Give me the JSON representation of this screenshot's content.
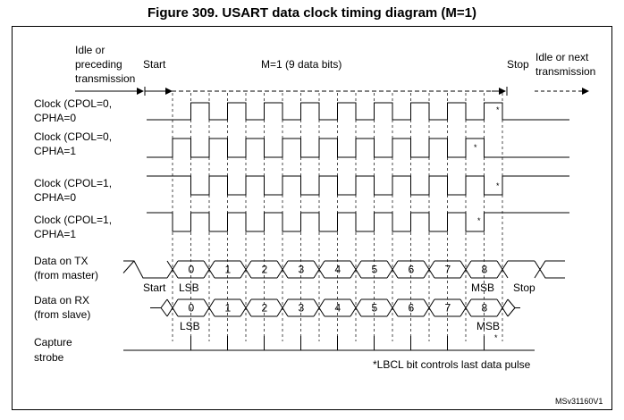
{
  "title": "Figure 309. USART data clock timing diagram (M=1)",
  "phases": {
    "idle_left": [
      "Idle or",
      "preceding",
      "transmission"
    ],
    "start": "Start",
    "data": "M=1 (9 data bits)",
    "stop": "Stop",
    "idle_right": [
      "Idle or next",
      "transmission"
    ]
  },
  "signals": [
    {
      "label": [
        "Clock (CPOL=0,",
        "CPHA=0"
      ],
      "cpol": 0,
      "cpha": 0
    },
    {
      "label": [
        "Clock (CPOL=0,",
        "CPHA=1"
      ],
      "cpol": 0,
      "cpha": 1
    },
    {
      "label": [
        "Clock (CPOL=1,",
        "CPHA=0"
      ],
      "cpol": 1,
      "cpha": 0
    },
    {
      "label": [
        "Clock (CPOL=1,",
        "CPHA=1"
      ],
      "cpol": 1,
      "cpha": 1
    }
  ],
  "tx": {
    "label": [
      "Data on TX",
      "(from master)"
    ],
    "bits": [
      "0",
      "1",
      "2",
      "3",
      "4",
      "5",
      "6",
      "7",
      "8"
    ],
    "start": "Start",
    "lsb": "LSB",
    "msb": "MSB",
    "stop": "Stop"
  },
  "rx": {
    "label": [
      "Data on RX",
      "(from slave)"
    ],
    "bits": [
      "0",
      "1",
      "2",
      "3",
      "4",
      "5",
      "6",
      "7",
      "8"
    ],
    "lsb": "LSB",
    "msb": "MSB"
  },
  "capture": {
    "label": [
      "Capture",
      "strobe"
    ]
  },
  "marker": "*",
  "note": "*LBCL bit controls last data pulse",
  "figure_id": "MSv31160V1"
}
